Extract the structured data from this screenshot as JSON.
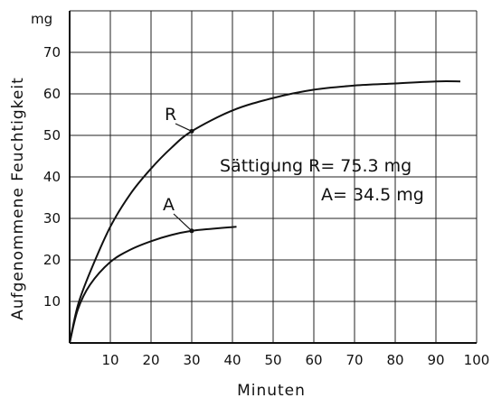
{
  "chart_data": {
    "type": "line",
    "title": "",
    "xlabel": "Minuten",
    "ylabel": "Aufgenommene Feuchtigkeit",
    "yunit": "mg",
    "xlim": [
      0,
      100
    ],
    "ylim": [
      0,
      80
    ],
    "x_ticks": [
      10,
      20,
      30,
      40,
      50,
      60,
      70,
      80,
      90,
      100
    ],
    "y_ticks": [
      10,
      20,
      30,
      40,
      50,
      60,
      70
    ],
    "grid": true,
    "series": [
      {
        "name": "R",
        "x": [
          0,
          2,
          5,
          10,
          15,
          20,
          25,
          30,
          40,
          50,
          60,
          70,
          80,
          90,
          96
        ],
        "y": [
          0,
          9,
          17,
          28,
          36,
          42,
          47,
          51,
          56,
          59,
          61,
          62,
          62.5,
          63,
          63
        ]
      },
      {
        "name": "A",
        "x": [
          0,
          2,
          5,
          10,
          15,
          20,
          25,
          30,
          35,
          41
        ],
        "y": [
          0,
          8,
          14,
          19.5,
          22.5,
          24.5,
          26,
          27,
          27.5,
          28
        ]
      }
    ],
    "annotations": [
      {
        "text": "Sättigung  R= 75.3 mg"
      },
      {
        "text": "A= 34.5 mg"
      }
    ]
  }
}
